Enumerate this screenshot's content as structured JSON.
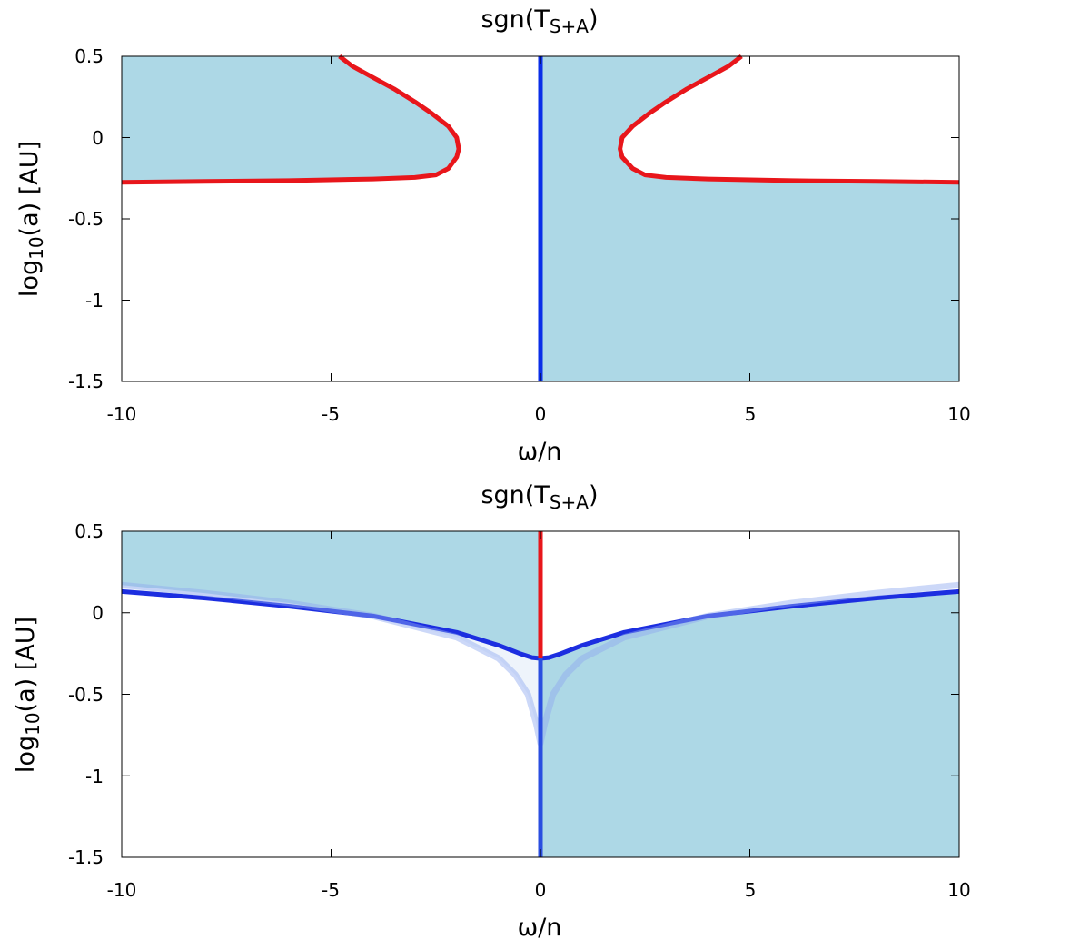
{
  "chart_data": [
    {
      "type": "area",
      "title": "sgn(T",
      "title_subscript": "S+A",
      "title_close": ")",
      "xlabel": "ω/n",
      "ylabel": "log",
      "ylabel_subscript": "10",
      "ylabel_rest": "(a) [AU]",
      "xlim": [
        -10,
        10
      ],
      "ylim": [
        -1.5,
        0.5
      ],
      "xticks": [
        "-10",
        "-5",
        "0",
        "5",
        "10"
      ],
      "yticks": [
        "0.5",
        "0",
        "-0.5",
        "-1",
        "-1.5"
      ],
      "grid": false,
      "fill_color": "#add8e6",
      "series": [
        {
          "color": "#e8161b",
          "x": [
            -10,
            -8,
            -6,
            -4,
            -3,
            -2.5,
            -2.2,
            -2,
            -1.95,
            -2,
            -2.2,
            -2.6,
            -3,
            -3.5,
            -4,
            -4.5,
            -4.8
          ],
          "y": [
            -0.275,
            -0.27,
            -0.265,
            -0.255,
            -0.245,
            -0.23,
            -0.19,
            -0.12,
            -0.07,
            0.0,
            0.07,
            0.15,
            0.22,
            0.3,
            0.37,
            0.44,
            0.5
          ]
        },
        {
          "color": "#e8161b",
          "x": [
            10,
            8,
            6,
            4,
            3,
            2.5,
            2.2,
            1.95,
            1.9,
            1.95,
            2.2,
            2.6,
            3,
            3.5,
            4,
            4.5,
            4.8
          ],
          "y": [
            -0.275,
            -0.27,
            -0.265,
            -0.255,
            -0.245,
            -0.23,
            -0.19,
            -0.12,
            -0.07,
            0.0,
            0.07,
            0.15,
            0.22,
            0.3,
            0.37,
            0.44,
            0.5
          ]
        },
        {
          "color": "#0a2ee8",
          "x": [
            0,
            0
          ],
          "y": [
            -1.5,
            0.5
          ]
        }
      ]
    },
    {
      "type": "area",
      "title": "sgn(T",
      "title_subscript": "S+A",
      "title_close": ")",
      "xlabel": "ω/n",
      "ylabel": "log",
      "ylabel_subscript": "10",
      "ylabel_rest": "(a) [AU]",
      "xlim": [
        -10,
        10
      ],
      "ylim": [
        -1.5,
        0.5
      ],
      "xticks": [
        "-10",
        "-5",
        "0",
        "5",
        "10"
      ],
      "yticks": [
        "0.5",
        "0",
        "-0.5",
        "-1",
        "-1.5"
      ],
      "grid": false,
      "fill_color": "#add8e6",
      "series": [
        {
          "color": "#1c2ee0",
          "x": [
            -10,
            -8,
            -6,
            -4,
            -2,
            -1,
            -0.5,
            -0.2,
            0,
            0.2,
            0.5,
            1,
            2,
            4,
            6,
            8,
            10
          ],
          "y": [
            0.13,
            0.09,
            0.04,
            -0.02,
            -0.12,
            -0.2,
            -0.25,
            -0.275,
            -0.28,
            -0.275,
            -0.25,
            -0.2,
            -0.12,
            -0.02,
            0.04,
            0.09,
            0.13
          ]
        },
        {
          "color": "#8fa9f0",
          "x": [
            -10,
            -8,
            -6,
            -4,
            -2,
            -1,
            -0.6,
            -0.3,
            -0.1,
            0,
            0.1,
            0.3,
            0.6,
            1,
            2,
            4,
            6,
            8,
            10
          ],
          "y": [
            0.17,
            0.12,
            0.06,
            -0.02,
            -0.15,
            -0.28,
            -0.38,
            -0.5,
            -0.68,
            -0.8,
            -0.68,
            -0.5,
            -0.38,
            -0.28,
            -0.15,
            -0.02,
            0.06,
            0.12,
            0.17
          ]
        },
        {
          "color": "#e8161b",
          "x": [
            0,
            0
          ],
          "y": [
            -0.28,
            0.5
          ]
        },
        {
          "color": "#2a4ee0",
          "x": [
            0,
            0
          ],
          "y": [
            -1.5,
            -0.28
          ]
        }
      ]
    }
  ]
}
